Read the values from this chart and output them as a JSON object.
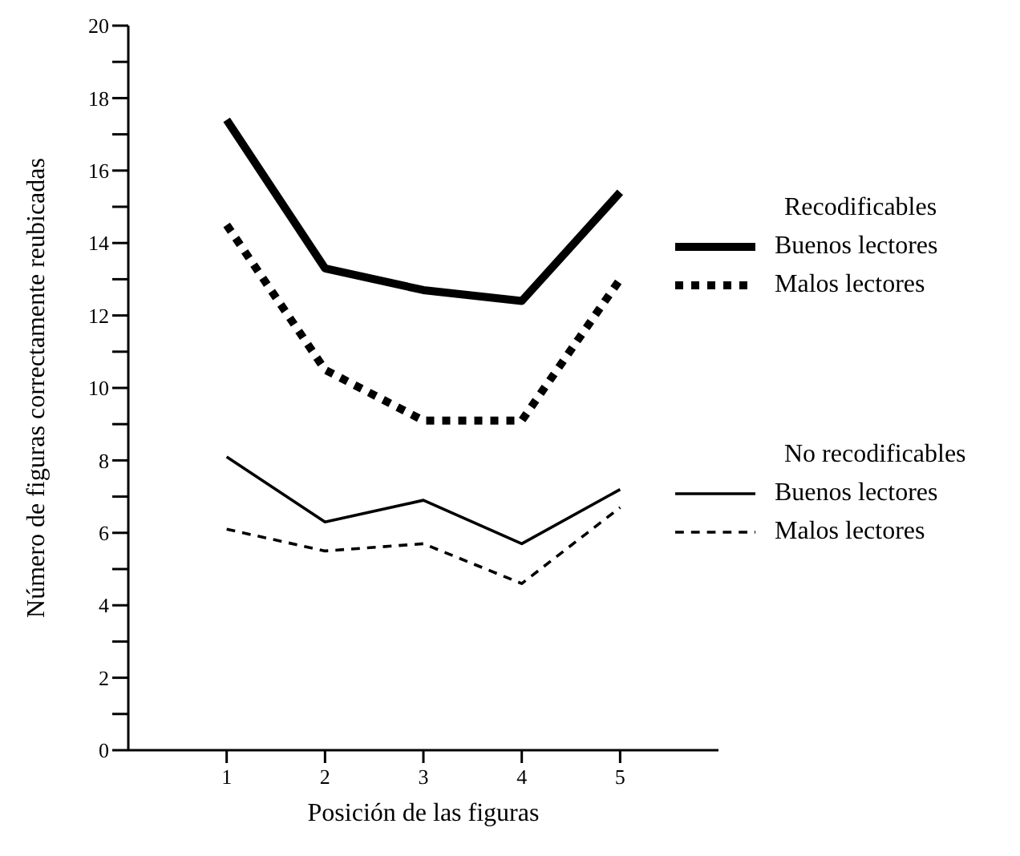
{
  "chart_data": {
    "type": "line",
    "xlabel": "Posición de las figuras",
    "ylabel": "Número de figuras correctamente reubicadas",
    "x": [
      1,
      2,
      3,
      4,
      5
    ],
    "xlim": [
      0,
      6
    ],
    "xticks": [
      1,
      2,
      3,
      4,
      5
    ],
    "ylim": [
      0,
      20
    ],
    "yticks": [
      0,
      {
        "value": 1,
        "label": null
      },
      2,
      {
        "value": 3,
        "label": null
      },
      4,
      {
        "value": 5,
        "label": null
      },
      6,
      {
        "value": 7,
        "label": null
      },
      8,
      {
        "value": 9,
        "label": null
      },
      10,
      {
        "value": 11,
        "label": null
      },
      12,
      {
        "value": 13,
        "label": null
      },
      14,
      {
        "value": 15,
        "label": null
      },
      16,
      {
        "value": 17,
        "label": null
      },
      18,
      {
        "value": 19,
        "label": null
      },
      20
    ],
    "annotations": [
      "Recodificables",
      "No recodificables"
    ],
    "legend": "right",
    "grid": false,
    "marker": "none",
    "series": [
      {
        "name": "Buenos lectores",
        "color": "#000000",
        "line_style": "solid",
        "values": [
          17.4,
          13.3,
          12.7,
          12.4,
          15.4
        ]
      },
      {
        "name": "Malos lectores",
        "color": "#000000",
        "line_style": "dotted",
        "values": [
          14.5,
          10.5,
          9.1,
          9.1,
          13.0
        ]
      },
      {
        "name": "Buenos lectores",
        "color": "#000000",
        "line_style": "solid",
        "values": [
          8.1,
          6.3,
          6.9,
          5.7,
          7.2
        ]
      },
      {
        "name": "Malos lectores",
        "color": "#000000",
        "line_style": "dashed",
        "values": [
          6.1,
          5.5,
          5.7,
          4.6,
          6.7
        ]
      }
    ]
  }
}
